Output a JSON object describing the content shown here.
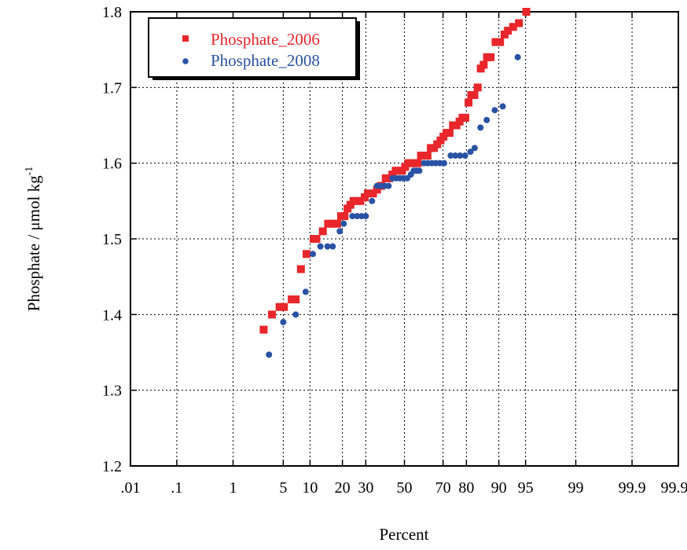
{
  "chart_data": {
    "type": "scatter",
    "x_scale": "probability",
    "y_scale": "linear",
    "xlabel": "Percent",
    "ylabel": "Phosphate / μmol kg",
    "ylabel_superscript": "-1",
    "ylim": [
      1.2,
      1.8
    ],
    "xlim": [
      0.01,
      99.99
    ],
    "grid": true,
    "legend_position": "top-left",
    "x_ticks": [
      {
        "value": 0.01,
        "label": ".01"
      },
      {
        "value": 0.1,
        "label": ".1"
      },
      {
        "value": 1,
        "label": "1"
      },
      {
        "value": 5,
        "label": "5"
      },
      {
        "value": 10,
        "label": "10"
      },
      {
        "value": 20,
        "label": "20"
      },
      {
        "value": 30,
        "label": "30"
      },
      {
        "value": 50,
        "label": "50"
      },
      {
        "value": 70,
        "label": "70"
      },
      {
        "value": 80,
        "label": "80"
      },
      {
        "value": 90,
        "label": "90"
      },
      {
        "value": 95,
        "label": "95"
      },
      {
        "value": 99,
        "label": "99"
      },
      {
        "value": 99.9,
        "label": "99.9"
      },
      {
        "value": 99.99,
        "label": "99.99"
      }
    ],
    "y_ticks": [
      {
        "value": 1.2,
        "label": "1.2"
      },
      {
        "value": 1.3,
        "label": "1.3"
      },
      {
        "value": 1.4,
        "label": "1.4"
      },
      {
        "value": 1.5,
        "label": "1.5"
      },
      {
        "value": 1.6,
        "label": "1.6"
      },
      {
        "value": 1.7,
        "label": "1.7"
      },
      {
        "value": 1.8,
        "label": "1.8"
      }
    ],
    "series": [
      {
        "name": "Phosphate_2006",
        "color": "#e8262b",
        "marker": "square",
        "points": [
          [
            2.8,
            1.38
          ],
          [
            3.6,
            1.4
          ],
          [
            4.5,
            1.41
          ],
          [
            5.1,
            1.41
          ],
          [
            6.3,
            1.42
          ],
          [
            7.0,
            1.42
          ],
          [
            8.0,
            1.46
          ],
          [
            9.2,
            1.48
          ],
          [
            10.9,
            1.5
          ],
          [
            11.6,
            1.5
          ],
          [
            13.4,
            1.51
          ],
          [
            15.0,
            1.52
          ],
          [
            16.5,
            1.52
          ],
          [
            18.1,
            1.52
          ],
          [
            19.5,
            1.53
          ],
          [
            20.8,
            1.53
          ],
          [
            22.0,
            1.54
          ],
          [
            23.2,
            1.545
          ],
          [
            24.5,
            1.55
          ],
          [
            26.0,
            1.55
          ],
          [
            27.5,
            1.55
          ],
          [
            29.5,
            1.555
          ],
          [
            31.0,
            1.56
          ],
          [
            33.5,
            1.56
          ],
          [
            35.5,
            1.565
          ],
          [
            37.5,
            1.57
          ],
          [
            40.0,
            1.58
          ],
          [
            41.8,
            1.58
          ],
          [
            43.5,
            1.585
          ],
          [
            45.3,
            1.59
          ],
          [
            47.0,
            1.59
          ],
          [
            48.7,
            1.59
          ],
          [
            50.4,
            1.595
          ],
          [
            52.1,
            1.6
          ],
          [
            53.8,
            1.6
          ],
          [
            55.5,
            1.6
          ],
          [
            57.2,
            1.6
          ],
          [
            58.9,
            1.61
          ],
          [
            60.6,
            1.61
          ],
          [
            62.3,
            1.61
          ],
          [
            64.0,
            1.62
          ],
          [
            65.6,
            1.62
          ],
          [
            67.2,
            1.625
          ],
          [
            68.8,
            1.63
          ],
          [
            70.2,
            1.635
          ],
          [
            71.6,
            1.64
          ],
          [
            73.0,
            1.64
          ],
          [
            74.5,
            1.65
          ],
          [
            76.0,
            1.65
          ],
          [
            77.3,
            1.655
          ],
          [
            78.5,
            1.66
          ],
          [
            79.6,
            1.66
          ],
          [
            80.8,
            1.68
          ],
          [
            81.8,
            1.69
          ],
          [
            82.9,
            1.69
          ],
          [
            84.0,
            1.7
          ],
          [
            85.0,
            1.725
          ],
          [
            85.9,
            1.73
          ],
          [
            86.9,
            1.74
          ],
          [
            87.9,
            1.74
          ],
          [
            89.2,
            1.76
          ],
          [
            90.3,
            1.76
          ],
          [
            91.3,
            1.77
          ],
          [
            92.0,
            1.775
          ],
          [
            93.0,
            1.78
          ],
          [
            94.0,
            1.785
          ],
          [
            95.1,
            1.8
          ]
        ]
      },
      {
        "name": "Phosphate_2008",
        "color": "#2a52a4",
        "marker": "circle",
        "points": [
          [
            3.3,
            1.347
          ],
          [
            5.0,
            1.39
          ],
          [
            7.0,
            1.4
          ],
          [
            9.0,
            1.43
          ],
          [
            10.7,
            1.48
          ],
          [
            12.7,
            1.49
          ],
          [
            14.8,
            1.49
          ],
          [
            16.5,
            1.49
          ],
          [
            19.0,
            1.51
          ],
          [
            20.5,
            1.52
          ],
          [
            24.0,
            1.53
          ],
          [
            26.0,
            1.53
          ],
          [
            28.0,
            1.53
          ],
          [
            30.0,
            1.53
          ],
          [
            33.0,
            1.55
          ],
          [
            35.5,
            1.57
          ],
          [
            37.5,
            1.57
          ],
          [
            39.5,
            1.57
          ],
          [
            41.5,
            1.57
          ],
          [
            43.5,
            1.58
          ],
          [
            45.5,
            1.58
          ],
          [
            47.5,
            1.58
          ],
          [
            49.5,
            1.58
          ],
          [
            51.5,
            1.58
          ],
          [
            53.5,
            1.585
          ],
          [
            55.0,
            1.59
          ],
          [
            56.5,
            1.59
          ],
          [
            58.0,
            1.59
          ],
          [
            60.5,
            1.6
          ],
          [
            62.5,
            1.6
          ],
          [
            64.5,
            1.6
          ],
          [
            66.5,
            1.6
          ],
          [
            68.5,
            1.6
          ],
          [
            70.5,
            1.6
          ],
          [
            73.5,
            1.61
          ],
          [
            75.5,
            1.61
          ],
          [
            77.5,
            1.61
          ],
          [
            79.5,
            1.61
          ],
          [
            81.5,
            1.615
          ],
          [
            83.0,
            1.62
          ],
          [
            84.9,
            1.647
          ],
          [
            86.8,
            1.657
          ],
          [
            89.0,
            1.67
          ],
          [
            90.9,
            1.675
          ],
          [
            93.8,
            1.74
          ]
        ]
      }
    ]
  }
}
